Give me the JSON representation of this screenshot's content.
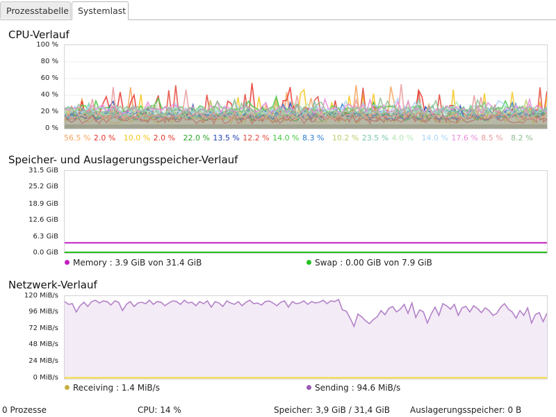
{
  "tabs": [
    {
      "label": "Prozesstabelle",
      "active": false
    },
    {
      "label": "Systemlast",
      "active": true
    }
  ],
  "cpu": {
    "title": "CPU-Verlauf",
    "y_ticks": [
      "100 %",
      "80 %",
      "60 %",
      "40 %",
      "20 %",
      "0 %"
    ],
    "legend": [
      {
        "value": "56.5 %",
        "color": "#f5a25a"
      },
      {
        "value": "2.0 %",
        "color": "#e8332c"
      },
      {
        "value": "10.0 %",
        "color": "#f2c51c"
      },
      {
        "value": "2.0 %",
        "color": "#e8332c"
      },
      {
        "value": "22.0 %",
        "color": "#2aa52a"
      },
      {
        "value": "13.5 %",
        "color": "#2140b0"
      },
      {
        "value": "12.2 %",
        "color": "#e0473a"
      },
      {
        "value": "14.0 %",
        "color": "#45c640"
      },
      {
        "value": "8.3 %",
        "color": "#2b7bd0"
      },
      {
        "value": "10.2 %",
        "color": "#b8d06a"
      },
      {
        "value": "23.5 %",
        "color": "#7ac6b0"
      },
      {
        "value": "4.0 %",
        "color": "#b4e8b0"
      },
      {
        "value": "14.0 %",
        "color": "#a8d4f4"
      },
      {
        "value": "17.6 %",
        "color": "#e88ad8"
      },
      {
        "value": "8.5 %",
        "color": "#e89a9a"
      },
      {
        "value": "8.2 %",
        "color": "#8ebc8e"
      }
    ]
  },
  "memory": {
    "title": "Speicher- und Auslagerungsspeicher-Verlauf",
    "y_ticks": [
      "31.5 GiB",
      "25.2 GiB",
      "18.9 GiB",
      "12.6 GiB",
      "6.3 GiB",
      "0.0 GiB"
    ],
    "memory_label": "Memory : 3.9 GiB von 31.4 GiB",
    "swap_label": "Swap : 0.00 GiB von 7.9 GiB",
    "memory_color": "#c21dc2",
    "swap_color": "#22c21d"
  },
  "network": {
    "title": "Netzwerk-Verlauf",
    "y_ticks": [
      "120 MiB/s",
      "96 MiB/s",
      "72 MiB/s",
      "48 MiB/s",
      "24 MiB/s",
      "0 MiB/s"
    ],
    "receiving_label": "Receiving : 1.4 MiB/s",
    "sending_label": "Sending : 94.6 MiB/s",
    "receiving_color": "#c8b040",
    "sending_color": "#9b59b6"
  },
  "chart_data": [
    {
      "type": "line",
      "title": "CPU-Verlauf",
      "ylim": [
        0,
        100
      ],
      "unit": "%",
      "series_values_current": [
        56.5,
        2.0,
        10.0,
        2.0,
        22.0,
        13.5,
        12.2,
        14.0,
        8.3,
        10.2,
        23.5,
        4.0,
        14.0,
        17.6,
        8.5,
        8.2
      ]
    },
    {
      "type": "line",
      "title": "Speicher- und Auslagerungsspeicher-Verlauf",
      "ylim": [
        0,
        31.5
      ],
      "unit": "GiB",
      "series": [
        {
          "name": "Memory",
          "values": [
            3.9
          ]
        },
        {
          "name": "Swap",
          "values": [
            0.0
          ]
        }
      ]
    },
    {
      "type": "line",
      "title": "Netzwerk-Verlauf",
      "ylim": [
        0,
        120
      ],
      "unit": "MiB/s",
      "series": [
        {
          "name": "Receiving",
          "values": [
            1.4
          ]
        },
        {
          "name": "Sending",
          "values": [
            112,
            108,
            109,
            97,
            106,
            111,
            105,
            112,
            114,
            110,
            113,
            112,
            107,
            113,
            111,
            99,
            108,
            112,
            105,
            110,
            111,
            109,
            114,
            108,
            112,
            111,
            106,
            110,
            113,
            112,
            108,
            114,
            110,
            111,
            106,
            112,
            109,
            113,
            104,
            112,
            110,
            105,
            113,
            110,
            108,
            112,
            106,
            111,
            114,
            109,
            110,
            107,
            112,
            113,
            110,
            106,
            111,
            113,
            104,
            112,
            109,
            110,
            113,
            108,
            112,
            110,
            111,
            114,
            109,
            113,
            112,
            115,
            100,
            98,
            88,
            76,
            94,
            90,
            84,
            80,
            86,
            90,
            99,
            93,
            102,
            105,
            97,
            101,
            108,
            95,
            110,
            89,
            100,
            97,
            81,
            94,
            104,
            92,
            109,
            106,
            101,
            108,
            92,
            103,
            105,
            97,
            106,
            102,
            96,
            103,
            99,
            92,
            95,
            104,
            109,
            101,
            97,
            88,
            99,
            92,
            103,
            81,
            93,
            96,
            83,
            95
          ]
        }
      ]
    },
    {
      "type": "statusbar",
      "processes": "0 Prozesse",
      "cpu": "CPU: 14 %",
      "memory": "Speicher: 3,9 GiB / 31,4 GiB",
      "swap": "Auslagerungsspeicher: 0 B"
    }
  ],
  "statusbar": {
    "processes": "0 Prozesse",
    "cpu": "CPU: 14 %",
    "memory": "Speicher: 3,9 GiB / 31,4 GiB",
    "swap": "Auslagerungsspeicher: 0 B"
  }
}
